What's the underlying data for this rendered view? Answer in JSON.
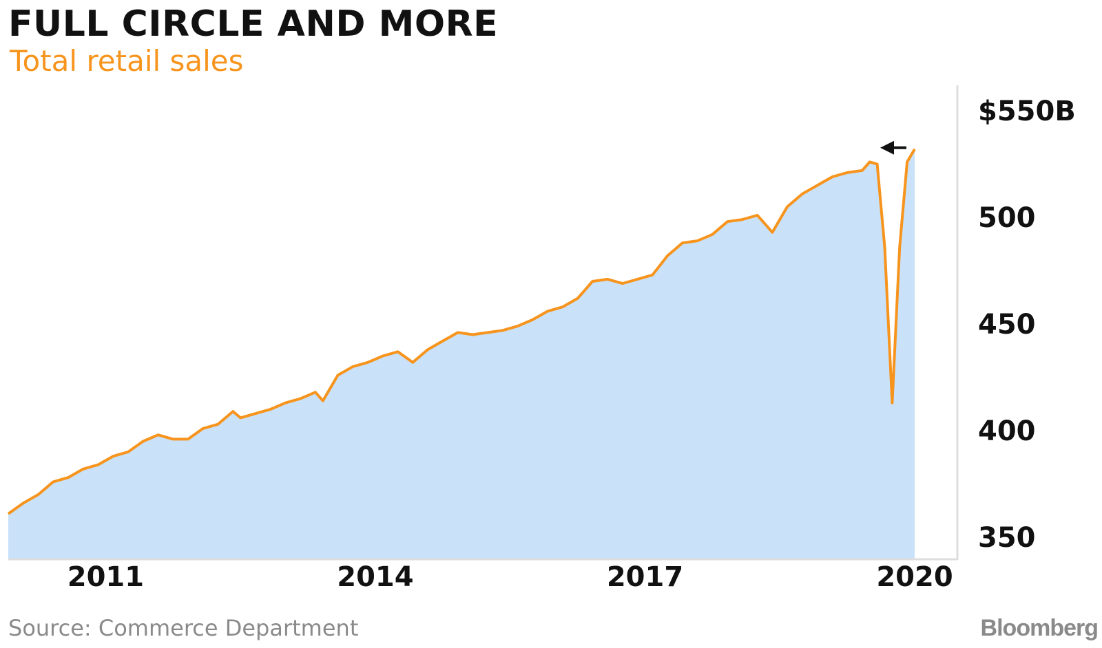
{
  "header": {
    "title": "FULL CIRCLE AND MORE",
    "subtitle": "Total retail sales"
  },
  "footer": {
    "source": "Source: Commerce Department",
    "brand": "Bloomberg"
  },
  "colors": {
    "line": "#f7941d",
    "area": "#c9e2fa",
    "axis": "#dddddd",
    "text": "#111111",
    "muted": "#8a8a8a"
  },
  "chart_data": {
    "type": "area",
    "title": "FULL CIRCLE AND MORE",
    "subtitle": "Total retail sales",
    "xlabel": "",
    "ylabel": "",
    "x_ticks": [
      "2011",
      "2014",
      "2017",
      "2020"
    ],
    "y_ticks": [
      "$550B",
      "500",
      "450",
      "400",
      "350"
    ],
    "y_tick_values": [
      550,
      500,
      450,
      400,
      350
    ],
    "xlim": [
      "2010-06",
      "2020-07"
    ],
    "ylim": [
      340,
      560
    ],
    "grid": false,
    "legend": "none",
    "annotation": "left-pointing arrow above the latest value",
    "series": [
      {
        "name": "",
        "points": [
          [
            "2010-06",
            361
          ],
          [
            "2010-08",
            366
          ],
          [
            "2010-10",
            370
          ],
          [
            "2010-12",
            376
          ],
          [
            "2011-02",
            378
          ],
          [
            "2011-04",
            382
          ],
          [
            "2011-06",
            384
          ],
          [
            "2011-08",
            388
          ],
          [
            "2011-10",
            390
          ],
          [
            "2011-12",
            395
          ],
          [
            "2012-02",
            398
          ],
          [
            "2012-04",
            396
          ],
          [
            "2012-06",
            396
          ],
          [
            "2012-08",
            401
          ],
          [
            "2012-10",
            403
          ],
          [
            "2012-12",
            409
          ],
          [
            "2013-01",
            406
          ],
          [
            "2013-03",
            408
          ],
          [
            "2013-05",
            410
          ],
          [
            "2013-07",
            413
          ],
          [
            "2013-09",
            415
          ],
          [
            "2013-11",
            418
          ],
          [
            "2013-12",
            414
          ],
          [
            "2014-02",
            426
          ],
          [
            "2014-04",
            430
          ],
          [
            "2014-06",
            432
          ],
          [
            "2014-08",
            435
          ],
          [
            "2014-10",
            437
          ],
          [
            "2014-12",
            432
          ],
          [
            "2015-02",
            438
          ],
          [
            "2015-04",
            442
          ],
          [
            "2015-06",
            446
          ],
          [
            "2015-08",
            445
          ],
          [
            "2015-10",
            446
          ],
          [
            "2015-12",
            447
          ],
          [
            "2016-02",
            449
          ],
          [
            "2016-04",
            452
          ],
          [
            "2016-06",
            456
          ],
          [
            "2016-08",
            458
          ],
          [
            "2016-10",
            462
          ],
          [
            "2016-12",
            470
          ],
          [
            "2017-02",
            471
          ],
          [
            "2017-04",
            469
          ],
          [
            "2017-06",
            471
          ],
          [
            "2017-08",
            473
          ],
          [
            "2017-10",
            482
          ],
          [
            "2017-12",
            488
          ],
          [
            "2018-02",
            489
          ],
          [
            "2018-04",
            492
          ],
          [
            "2018-06",
            498
          ],
          [
            "2018-08",
            499
          ],
          [
            "2018-10",
            501
          ],
          [
            "2018-12",
            493
          ],
          [
            "2019-02",
            505
          ],
          [
            "2019-04",
            511
          ],
          [
            "2019-06",
            515
          ],
          [
            "2019-08",
            519
          ],
          [
            "2019-10",
            521
          ],
          [
            "2019-12",
            522
          ],
          [
            "2020-01",
            526
          ],
          [
            "2020-02",
            525
          ],
          [
            "2020-03",
            486
          ],
          [
            "2020-04",
            413
          ],
          [
            "2020-05",
            486
          ],
          [
            "2020-06",
            526
          ],
          [
            "2020-07",
            532
          ]
        ]
      }
    ]
  }
}
